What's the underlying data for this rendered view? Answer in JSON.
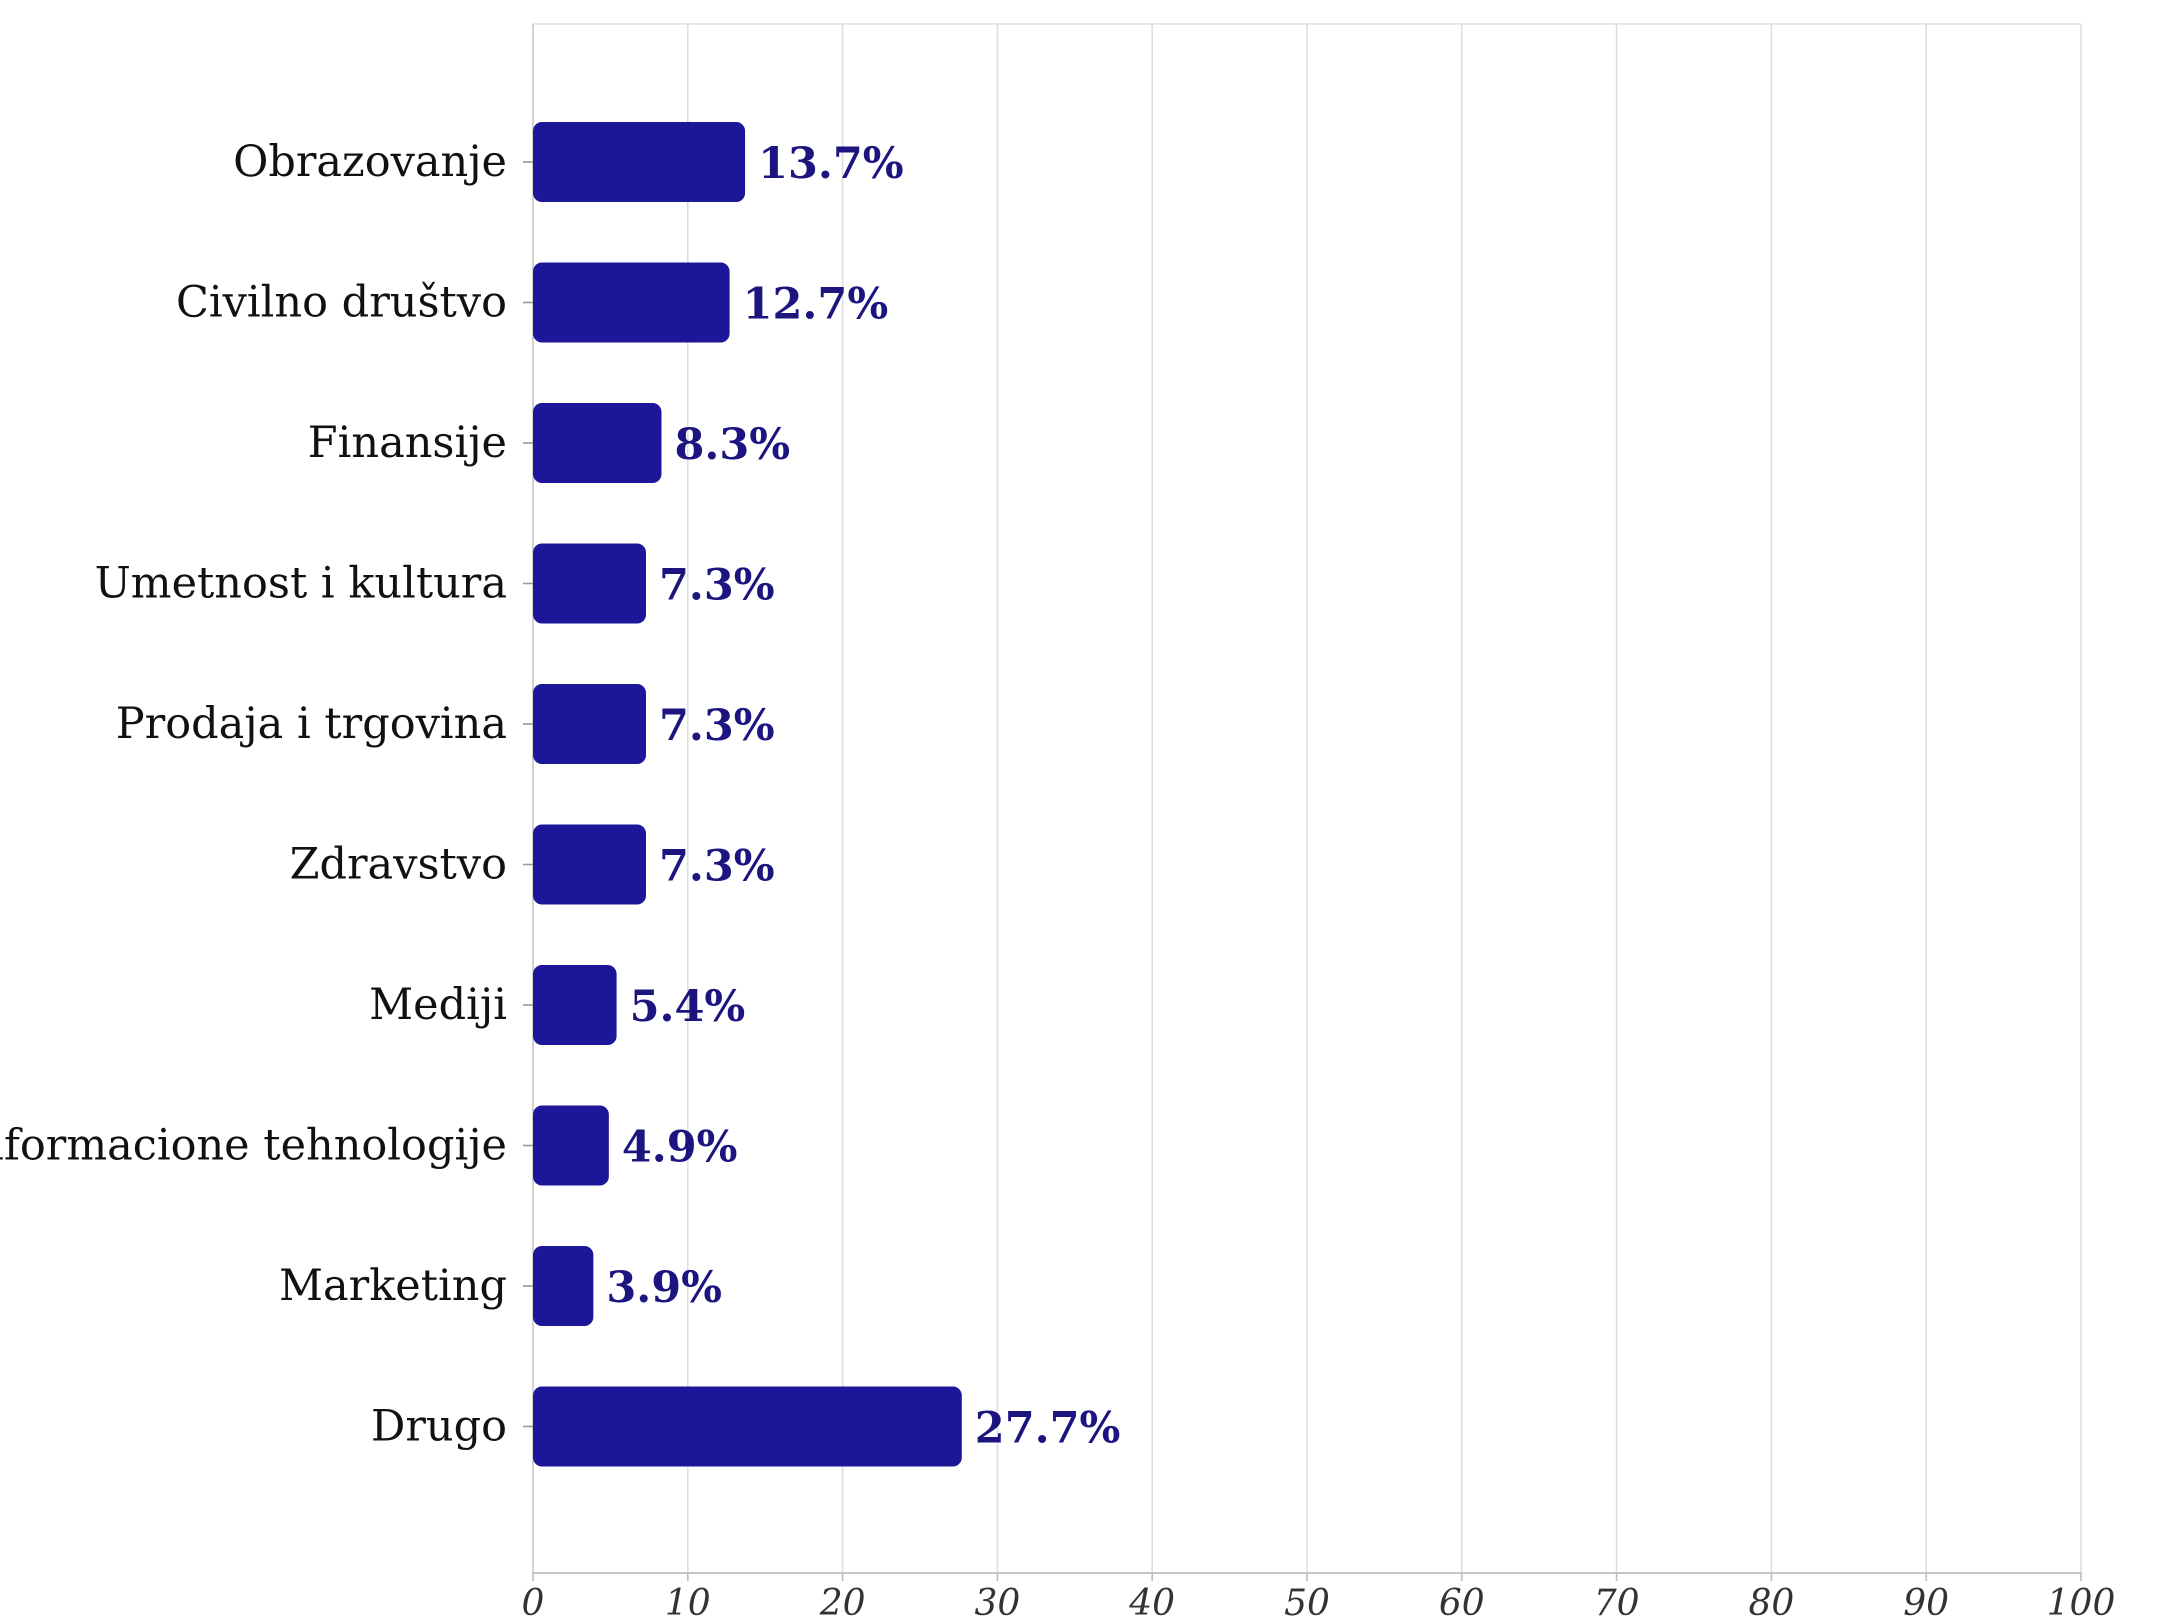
{
  "chart_data": {
    "type": "bar",
    "orientation": "horizontal",
    "title": "",
    "xlabel": "",
    "ylabel": "",
    "categories": [
      "Obrazovanje",
      "Civilno društvo",
      "Finansije",
      "Umetnost i kultura",
      "Prodaja i trgovina",
      "Zdravstvo",
      "Mediji",
      "Informacione tehnologije",
      "Marketing",
      "Drugo"
    ],
    "values": [
      13.7,
      12.7,
      8.3,
      7.3,
      7.3,
      7.3,
      5.4,
      4.9,
      3.9,
      27.7
    ],
    "value_labels": [
      "13.7%",
      "12.7%",
      "8.3%",
      "7.3%",
      "7.3%",
      "7.3%",
      "5.4%",
      "4.9%",
      "3.9%",
      "27.7%"
    ],
    "xlim": [
      0,
      100
    ],
    "xticks": [
      0,
      10,
      20,
      30,
      40,
      50,
      60,
      70,
      80,
      90,
      100
    ],
    "grid": true,
    "legend": "none",
    "bar_color": "#1c1699",
    "label_color": "#1c1580"
  }
}
